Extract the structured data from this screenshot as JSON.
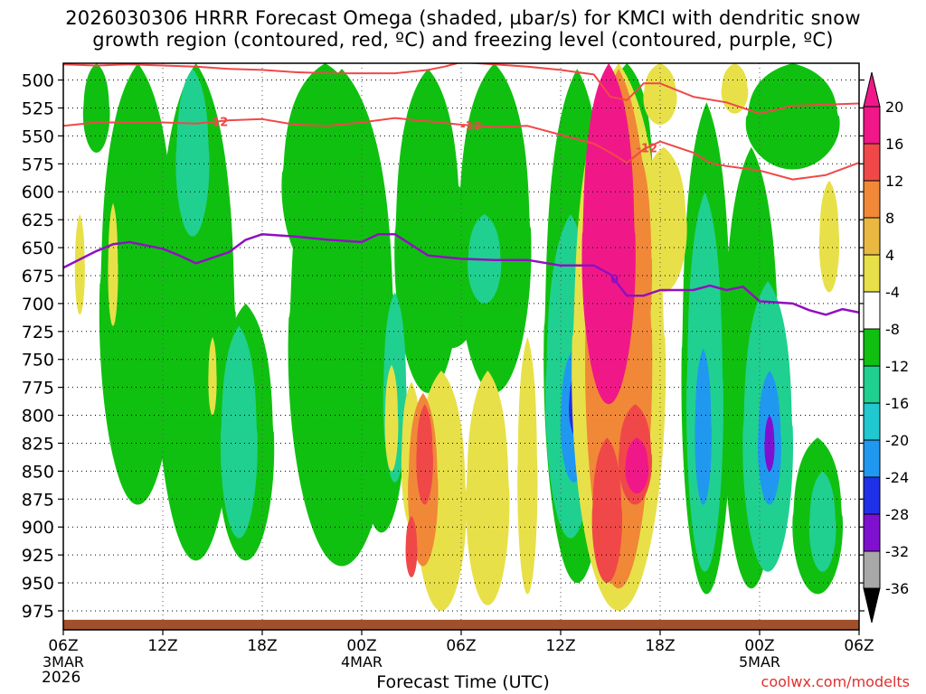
{
  "chart_data": {
    "type": "heatmap",
    "title_line1": "2026030306 HRRR Forecast Omega (shaded, µbar/s) for KMCI with dendritic snow",
    "title_line2": "growth region (contoured, red, ºC) and freezing level (contoured, purple, ºC)",
    "xlabel": "Forecast Time (UTC)",
    "credit": "coolwx.com/modelts",
    "year_label": "2026",
    "x_ticks": [
      {
        "label": "06Z",
        "sub": "3MAR"
      },
      {
        "label": "12Z",
        "sub": ""
      },
      {
        "label": "18Z",
        "sub": ""
      },
      {
        "label": "00Z",
        "sub": "4MAR"
      },
      {
        "label": "06Z",
        "sub": ""
      },
      {
        "label": "12Z",
        "sub": ""
      },
      {
        "label": "18Z",
        "sub": ""
      },
      {
        "label": "00Z",
        "sub": "5MAR"
      },
      {
        "label": "06Z",
        "sub": ""
      }
    ],
    "x_range_hours": [
      0,
      48
    ],
    "y_ticks": [
      500,
      525,
      550,
      575,
      600,
      625,
      650,
      675,
      700,
      725,
      750,
      775,
      800,
      825,
      850,
      875,
      900,
      925,
      950,
      975
    ],
    "y_range_mb": [
      485,
      992
    ],
    "grid": true,
    "colorbar": {
      "labels": [
        "20",
        "16",
        "12",
        "8",
        "4",
        "-4",
        "-8",
        "-12",
        "-16",
        "-20",
        "-24",
        "-28",
        "-32",
        "-36"
      ],
      "levels": [
        {
          "color": "#f01888"
        },
        {
          "color": "#f04848"
        },
        {
          "color": "#f08838"
        },
        {
          "color": "#e8b840"
        },
        {
          "color": "#e8e048"
        },
        {
          "color": "#ffffff"
        },
        {
          "color": "#10c010"
        },
        {
          "color": "#20d090"
        },
        {
          "color": "#20c8d0"
        },
        {
          "color": "#2098f0"
        },
        {
          "color": "#2030e8"
        },
        {
          "color": "#8010d0"
        },
        {
          "color": "#a8a8a8"
        }
      ],
      "top_arrow_color": "#f01888",
      "bottom_arrow_color": "#000000"
    },
    "omega_regions": [
      {
        "class": "green",
        "hour": 2.0,
        "top": 485,
        "bottom": 565,
        "halfwidth": 0.8
      },
      {
        "class": "green",
        "hour": 4.5,
        "top": 485,
        "bottom": 880,
        "halfwidth": 2.3
      },
      {
        "class": "green",
        "hour": 8.0,
        "top": 485,
        "bottom": 930,
        "halfwidth": 2.4
      },
      {
        "class": "green",
        "hour": 11.0,
        "top": 700,
        "bottom": 930,
        "halfwidth": 1.7
      },
      {
        "class": "green",
        "hour": 15.8,
        "top": 485,
        "bottom": 680,
        "halfwidth": 2.6
      },
      {
        "class": "green",
        "hour": 16.8,
        "top": 490,
        "bottom": 935,
        "halfwidth": 3.2
      },
      {
        "class": "green",
        "hour": 22.0,
        "top": 490,
        "bottom": 780,
        "halfwidth": 2.0
      },
      {
        "class": "green",
        "hour": 19.2,
        "top": 670,
        "bottom": 905,
        "halfwidth": 1.4
      },
      {
        "class": "green",
        "hour": 23.4,
        "top": 590,
        "bottom": 740,
        "halfwidth": 2.0
      },
      {
        "class": "green",
        "hour": 26.0,
        "top": 485,
        "bottom": 780,
        "halfwidth": 2.2
      },
      {
        "class": "green",
        "hour": 31.0,
        "top": 490,
        "bottom": 950,
        "halfwidth": 2.0
      },
      {
        "class": "green",
        "hour": 34.0,
        "top": 485,
        "bottom": 690,
        "halfwidth": 1.6
      },
      {
        "class": "green",
        "hour": 38.8,
        "top": 520,
        "bottom": 960,
        "halfwidth": 1.5
      },
      {
        "class": "green",
        "hour": 41.5,
        "top": 560,
        "bottom": 955,
        "halfwidth": 1.7
      },
      {
        "class": "green",
        "hour": 44.0,
        "top": 485,
        "bottom": 580,
        "halfwidth": 2.8
      },
      {
        "class": "green",
        "hour": 45.5,
        "top": 820,
        "bottom": 960,
        "halfwidth": 1.5
      },
      {
        "class": "teal",
        "hour": 7.8,
        "top": 490,
        "bottom": 640,
        "halfwidth": 1.0
      },
      {
        "class": "teal",
        "hour": 10.6,
        "top": 720,
        "bottom": 910,
        "halfwidth": 1.1
      },
      {
        "class": "teal",
        "hour": 20.0,
        "top": 690,
        "bottom": 860,
        "halfwidth": 0.7
      },
      {
        "class": "teal",
        "hour": 25.4,
        "top": 620,
        "bottom": 700,
        "halfwidth": 1.0
      },
      {
        "class": "teal",
        "hour": 30.6,
        "top": 620,
        "bottom": 910,
        "halfwidth": 1.5
      },
      {
        "class": "teal",
        "hour": 38.7,
        "top": 600,
        "bottom": 940,
        "halfwidth": 1.1
      },
      {
        "class": "teal",
        "hour": 42.5,
        "top": 680,
        "bottom": 940,
        "halfwidth": 1.5
      },
      {
        "class": "teal",
        "hour": 45.8,
        "top": 850,
        "bottom": 940,
        "halfwidth": 0.8
      },
      {
        "class": "blue",
        "hour": 30.8,
        "top": 740,
        "bottom": 860,
        "halfwidth": 0.8
      },
      {
        "class": "blue",
        "hour": 38.6,
        "top": 740,
        "bottom": 880,
        "halfwidth": 0.5
      },
      {
        "class": "blue",
        "hour": 42.6,
        "top": 760,
        "bottom": 880,
        "halfwidth": 0.7
      },
      {
        "class": "navy",
        "hour": 31.0,
        "top": 760,
        "bottom": 820,
        "halfwidth": 0.5
      },
      {
        "class": "purple",
        "hour": 42.6,
        "top": 800,
        "bottom": 850,
        "halfwidth": 0.3
      },
      {
        "class": "yellow",
        "hour": 1.0,
        "top": 620,
        "bottom": 710,
        "halfwidth": 0.3
      },
      {
        "class": "yellow",
        "hour": 3.0,
        "top": 610,
        "bottom": 720,
        "halfwidth": 0.3
      },
      {
        "class": "yellow",
        "hour": 9.0,
        "top": 730,
        "bottom": 800,
        "halfwidth": 0.25
      },
      {
        "class": "yellow",
        "hour": 19.8,
        "top": 755,
        "bottom": 850,
        "halfwidth": 0.4
      },
      {
        "class": "yellow",
        "hour": 21.0,
        "top": 770,
        "bottom": 900,
        "halfwidth": 0.6
      },
      {
        "class": "yellow",
        "hour": 22.8,
        "top": 760,
        "bottom": 975,
        "halfwidth": 1.5
      },
      {
        "class": "yellow",
        "hour": 25.6,
        "top": 760,
        "bottom": 970,
        "halfwidth": 1.3
      },
      {
        "class": "yellow",
        "hour": 28.0,
        "top": 730,
        "bottom": 960,
        "halfwidth": 0.6
      },
      {
        "class": "yellow",
        "hour": 33.5,
        "top": 485,
        "bottom": 975,
        "halfwidth": 2.8
      },
      {
        "class": "yellow",
        "hour": 36.2,
        "top": 560,
        "bottom": 690,
        "halfwidth": 1.4
      },
      {
        "class": "yellow",
        "hour": 36.0,
        "top": 485,
        "bottom": 540,
        "halfwidth": 1.0
      },
      {
        "class": "yellow",
        "hour": 40.5,
        "top": 485,
        "bottom": 530,
        "halfwidth": 0.8
      },
      {
        "class": "yellow",
        "hour": 46.2,
        "top": 590,
        "bottom": 690,
        "halfwidth": 0.6
      },
      {
        "class": "orange",
        "hour": 21.7,
        "top": 780,
        "bottom": 935,
        "halfwidth": 0.9
      },
      {
        "class": "orange",
        "hour": 34.6,
        "top": 560,
        "bottom": 760,
        "halfwidth": 0.9
      },
      {
        "class": "orange",
        "hour": 33.5,
        "top": 490,
        "bottom": 955,
        "halfwidth": 2.0
      },
      {
        "class": "red",
        "hour": 21.8,
        "top": 790,
        "bottom": 880,
        "halfwidth": 0.5
      },
      {
        "class": "red",
        "hour": 21.0,
        "top": 890,
        "bottom": 945,
        "halfwidth": 0.35
      },
      {
        "class": "red",
        "hour": 32.8,
        "top": 820,
        "bottom": 950,
        "halfwidth": 0.9
      },
      {
        "class": "red",
        "hour": 34.5,
        "top": 790,
        "bottom": 880,
        "halfwidth": 1.0
      },
      {
        "class": "magenta",
        "hour": 32.9,
        "top": 485,
        "bottom": 790,
        "halfwidth": 1.6
      },
      {
        "class": "magenta",
        "hour": 34.6,
        "top": 820,
        "bottom": 870,
        "halfwidth": 0.7
      }
    ],
    "dgz_upper": {
      "label": "-12",
      "color": "#f04848",
      "hours": [
        0,
        2,
        4,
        6,
        8,
        10,
        12,
        14,
        16,
        18,
        20,
        22,
        23,
        24,
        26,
        28,
        30,
        32,
        33,
        34,
        35,
        36,
        38,
        40,
        42,
        44,
        46,
        48
      ],
      "mb": [
        486,
        487,
        486,
        487,
        488,
        490,
        491,
        493,
        494,
        494,
        494,
        491,
        488,
        484,
        486,
        488,
        491,
        495,
        515,
        518,
        503,
        503,
        515,
        520,
        530,
        523,
        522,
        521
      ]
    },
    "dgz_lower": {
      "label": "-12",
      "color": "#f04848",
      "label_hours": [
        9.3,
        24.6,
        35.2
      ],
      "hours": [
        0,
        2,
        4,
        6,
        8,
        10,
        12,
        14,
        16,
        18,
        20,
        22,
        24,
        26,
        28,
        30,
        32,
        33,
        34,
        35,
        36,
        38,
        39,
        40,
        42,
        44,
        46,
        48
      ],
      "mb": [
        541,
        538,
        538,
        538,
        539,
        536,
        535,
        540,
        541,
        538,
        534,
        537,
        540,
        542,
        541,
        549,
        557,
        565,
        574,
        562,
        555,
        565,
        574,
        577,
        581,
        589,
        585,
        574
      ]
    },
    "freezing_level": {
      "label": "0",
      "color": "#9010c0",
      "label_hour": 33.2,
      "hours": [
        0,
        2,
        3,
        4,
        6,
        7,
        8,
        10,
        11,
        12,
        14,
        16,
        18,
        19,
        20,
        22,
        24,
        26,
        28,
        30,
        32,
        33,
        34,
        35,
        36,
        38,
        39,
        40,
        41,
        42,
        44,
        45,
        46,
        47,
        48
      ],
      "mb": [
        668,
        653,
        647,
        645,
        651,
        657,
        664,
        654,
        643,
        638,
        640,
        643,
        645,
        638,
        638,
        657,
        660,
        661,
        661,
        666,
        666,
        674,
        693,
        693,
        688,
        688,
        684,
        688,
        685,
        698,
        700,
        706,
        710,
        705,
        708
      ]
    },
    "terrain": {
      "color": "#a0502a",
      "top_mb": 983
    }
  }
}
